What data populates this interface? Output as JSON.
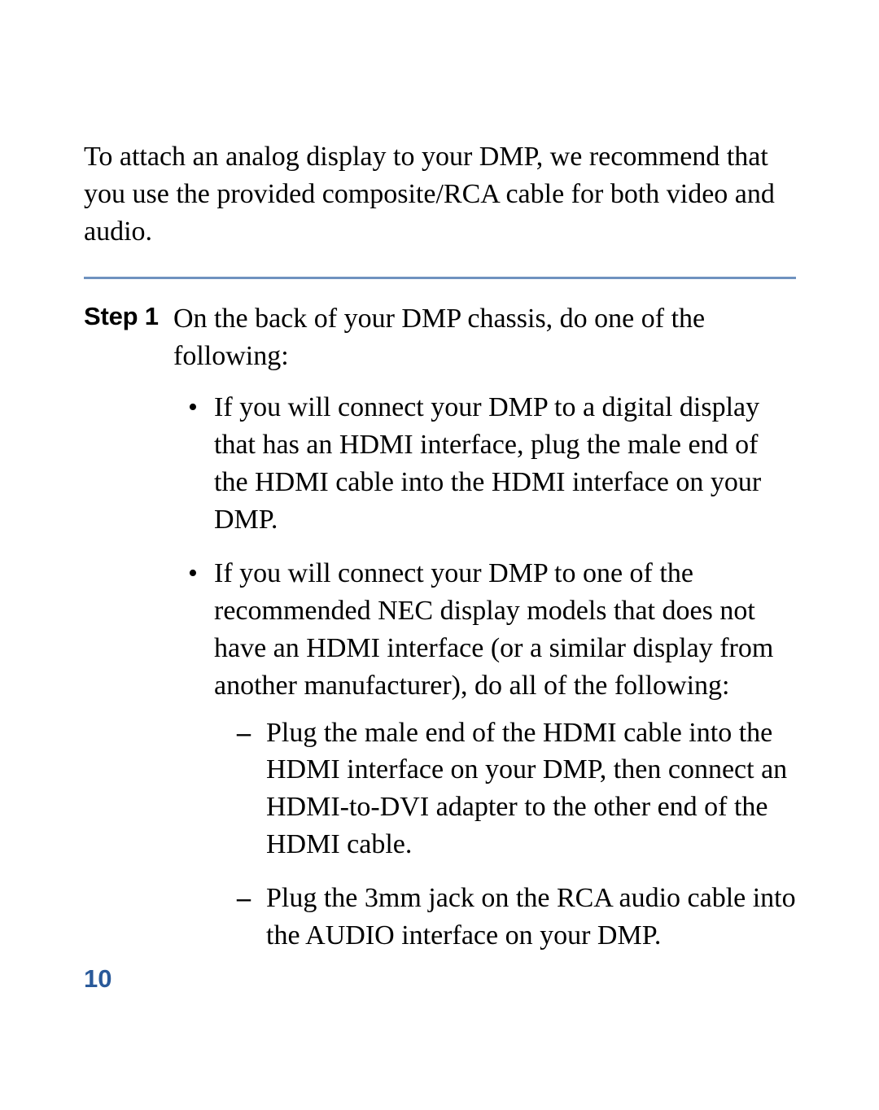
{
  "colors": {
    "rule": "#6f92bf",
    "page_number": "#2a5a9a",
    "text": "#000000",
    "background": "#ffffff"
  },
  "typography": {
    "body_font": "Sabon / Times New Roman (serif)",
    "body_size_pt": 25,
    "step_label_font": "Helvetica (sans-serif)",
    "step_label_weight": "bold",
    "page_number_font": "Helvetica (sans-serif)",
    "page_number_weight": "bold"
  },
  "intro": "To attach an analog display to your DMP, we recommend that you use the provided composite/RCA cable for both video and audio.",
  "step": {
    "label": "Step 1",
    "lead": "On the back of your DMP chassis, do one of the following:",
    "bullets": [
      {
        "text": "If you will connect your DMP to a digital display that has an HDMI interface, plug the male end of the HDMI cable into the HDMI interface on your DMP."
      },
      {
        "text": "If you will connect your DMP to one of the recommended NEC display models that does not have an HDMI interface (or a similar display from another manufacturer), do all of the following:",
        "sub": [
          "Plug the male end of the HDMI cable into the HDMI interface on your DMP, then connect an HDMI-to-DVI adapter to the other end of the HDMI cable.",
          "Plug the 3mm jack on the RCA audio cable into the AUDIO interface on your DMP."
        ]
      }
    ]
  },
  "page_number": "10"
}
